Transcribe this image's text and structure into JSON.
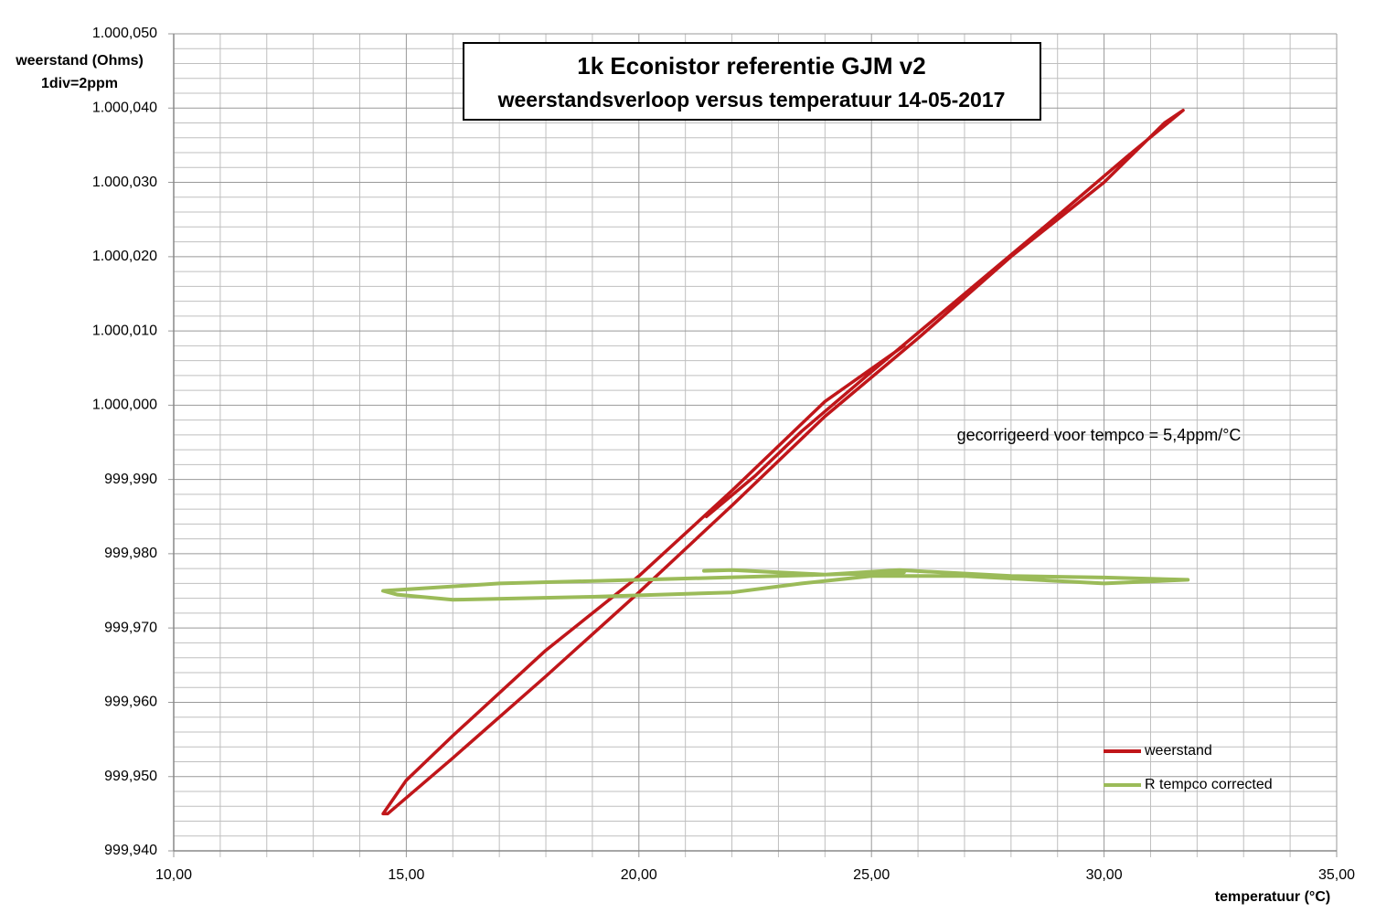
{
  "chart_data": {
    "type": "line",
    "title": "1k Econistor referentie GJM v2",
    "subtitle": "weerstandsverloop versus temperatuur 14-05-2017",
    "y_label": "weerstand (Ohms)",
    "y_label_note": "1div=2ppm",
    "x_label": "temperatuur (°C)",
    "annotation": "gecorrigeerd voor tempco = 5,4ppm/°C",
    "grid": true,
    "legend": "lower right",
    "xlim": [
      10,
      35
    ],
    "xticks": [
      {
        "value": 10,
        "label": "10,00"
      },
      {
        "value": 15,
        "label": "15,00"
      },
      {
        "value": 20,
        "label": "20,00"
      },
      {
        "value": 25,
        "label": "25,00"
      },
      {
        "value": 30,
        "label": "30,00"
      },
      {
        "value": 35,
        "label": "35,00"
      }
    ],
    "ylim": [
      999.94,
      1000.05
    ],
    "yticks": [
      {
        "value": 999.94,
        "label": "999,940"
      },
      {
        "value": 999.95,
        "label": "999,950"
      },
      {
        "value": 999.96,
        "label": "999,960"
      },
      {
        "value": 999.97,
        "label": "999,970"
      },
      {
        "value": 999.98,
        "label": "999,980"
      },
      {
        "value": 999.99,
        "label": "999,990"
      },
      {
        "value": 1000.0,
        "label": "1.000,000"
      },
      {
        "value": 1000.01,
        "label": "1.000,010"
      },
      {
        "value": 1000.02,
        "label": "1.000,020"
      },
      {
        "value": 1000.03,
        "label": "1.000,030"
      },
      {
        "value": 1000.04,
        "label": "1.000,040"
      },
      {
        "value": 1000.05,
        "label": "1.000,050"
      }
    ],
    "series": [
      {
        "name": "weerstand",
        "color": "#c0161a",
        "x": [
          21.45,
          22.5,
          23.5,
          25.0,
          27.0,
          29.0,
          30.5,
          31.7,
          31.3,
          30.0,
          28.0,
          26.0,
          24.0,
          22.0,
          20.0,
          18.0,
          16.0,
          14.6,
          14.5,
          15.0,
          16.0,
          18.0,
          20.0,
          22.0,
          24.0,
          25.7
        ],
        "values": [
          999.985,
          999.9905,
          999.9965,
          1000.0045,
          1000.015,
          1000.0255,
          1000.0335,
          1000.0397,
          1000.038,
          1000.03,
          1000.02,
          1000.009,
          999.9985,
          999.9865,
          999.9748,
          999.9635,
          999.9525,
          999.945,
          999.945,
          999.9495,
          999.9555,
          999.967,
          999.977,
          999.9885,
          1000.0005,
          1000.008
        ]
      },
      {
        "name": "R tempco  corrected",
        "color": "#9bbb59",
        "x": [
          21.4,
          22.0,
          24.0,
          25.6,
          28.0,
          30.0,
          31.8,
          30.0,
          27.0,
          25.0,
          23.5,
          22.0,
          19.0,
          16.0,
          14.8,
          14.5,
          15.0,
          17.0,
          20.0,
          23.0,
          25.7
        ],
        "values": [
          999.9777,
          999.9778,
          999.9772,
          999.9778,
          999.977,
          999.9768,
          999.9765,
          999.976,
          999.977,
          999.977,
          999.976,
          999.9748,
          999.9742,
          999.9738,
          999.9745,
          999.975,
          999.9752,
          999.976,
          999.9765,
          999.977,
          999.9775
        ]
      }
    ]
  }
}
